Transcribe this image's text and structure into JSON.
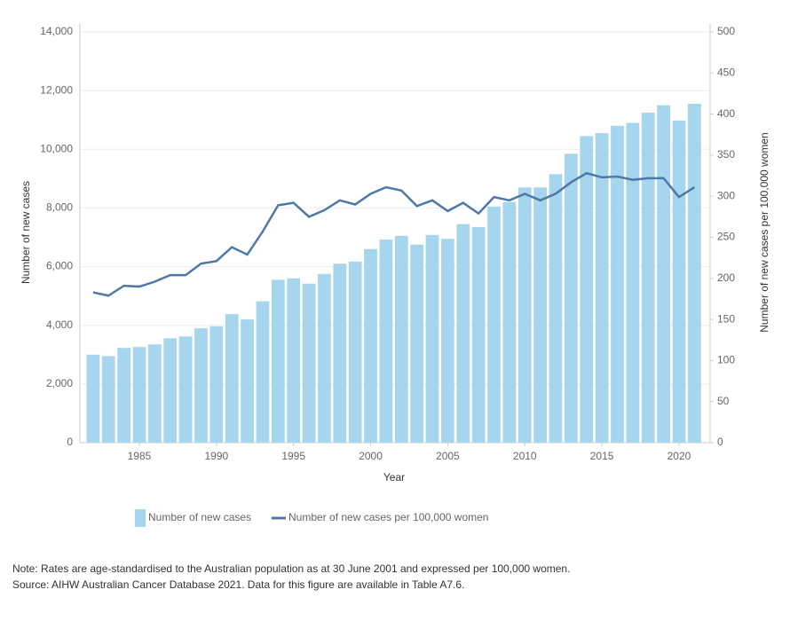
{
  "chart_data": {
    "type": "bar_line",
    "x_label": "Year",
    "y_label": "Number of new cases",
    "y2_label": "Number of new cases per 100,000 women",
    "x": [
      1982,
      1983,
      1984,
      1985,
      1986,
      1987,
      1988,
      1989,
      1990,
      1991,
      1992,
      1993,
      1994,
      1995,
      1996,
      1997,
      1998,
      1999,
      2000,
      2001,
      2002,
      2003,
      2004,
      2005,
      2006,
      2007,
      2008,
      2009,
      2010,
      2011,
      2012,
      2013,
      2014,
      2015,
      2016,
      2017,
      2018,
      2019,
      2020,
      2021
    ],
    "series": [
      {
        "name": "Number of new cases",
        "type": "bar",
        "color": "#a6d5ee",
        "values": [
          3000,
          2950,
          3230,
          3260,
          3350,
          3560,
          3620,
          3900,
          3970,
          4380,
          4200,
          4820,
          5550,
          5600,
          5420,
          5750,
          6100,
          6170,
          6600,
          6920,
          7050,
          6750,
          7080,
          6950,
          7450,
          7350,
          8050,
          8200,
          8700,
          8700,
          9150,
          9850,
          10450,
          10550,
          10800,
          10900,
          11250,
          11500,
          10980,
          11550
        ]
      },
      {
        "name": "Number of new cases per 100,000 women",
        "type": "line",
        "axis": "y2",
        "color": "#4e79a7",
        "values": [
          183,
          179,
          191,
          190,
          196,
          204,
          204,
          218,
          221,
          238,
          229,
          257,
          289,
          292,
          275,
          283,
          295,
          290,
          303,
          311,
          307,
          288,
          295,
          282,
          292,
          279,
          299,
          295,
          303,
          295,
          303,
          317,
          328,
          323,
          324,
          320,
          322,
          322,
          299,
          311
        ]
      }
    ],
    "xlim": [
      1981,
      2022
    ],
    "xticks": [
      1985,
      1990,
      1995,
      2000,
      2005,
      2010,
      2015,
      2020
    ],
    "ylim": [
      0,
      14000
    ],
    "yticks": [
      0,
      {
        "value": 2000,
        "label": "2,000"
      },
      {
        "value": 4000,
        "label": "4,000"
      },
      {
        "value": 6000,
        "label": "6,000"
      },
      {
        "value": 8000,
        "label": "8,000"
      },
      {
        "value": 10000,
        "label": "10,000"
      },
      {
        "value": 12000,
        "label": "12,000"
      },
      {
        "value": 14000,
        "label": "14,000"
      }
    ],
    "y2lim": [
      0,
      500
    ],
    "y2ticks": [
      0,
      50,
      100,
      150,
      200,
      250,
      300,
      350,
      400,
      450,
      500
    ],
    "grid": true,
    "notes": [
      "Note: Rates are age-standardised to the Australian population as at 30 June 2001 and expressed per 100,000 women.",
      "Source: AIHW Australian Cancer Database 2021. Data for this figure are available in Table A7.6."
    ]
  }
}
